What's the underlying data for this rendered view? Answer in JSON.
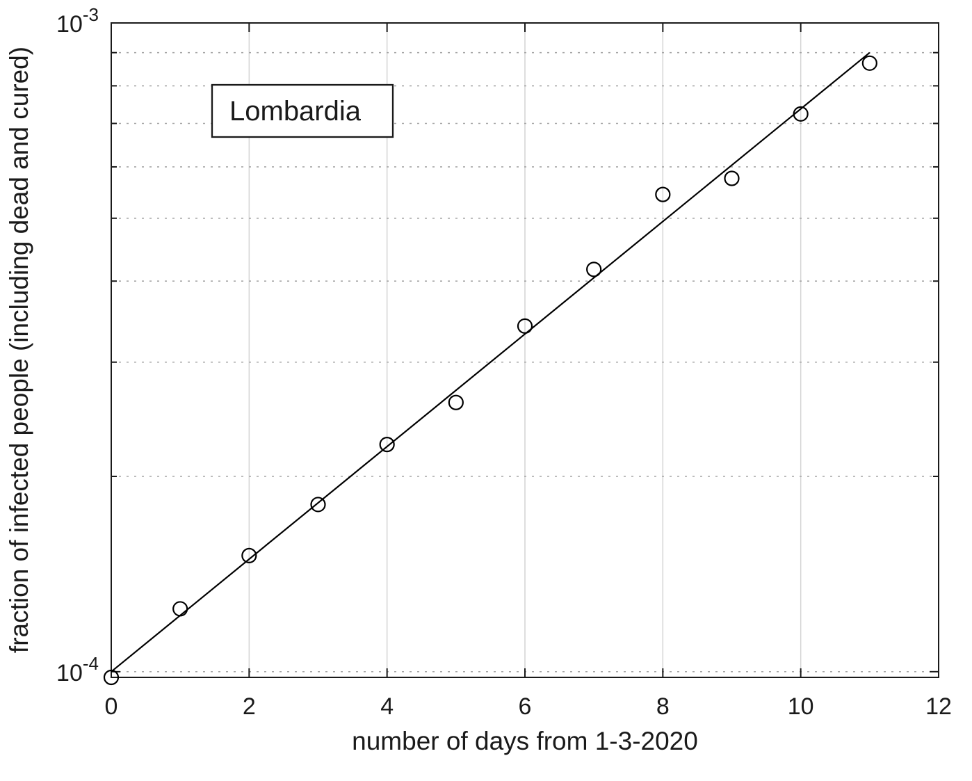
{
  "chart_data": {
    "type": "scatter",
    "legend": "Lombardia",
    "xlabel": "number of days from 1-3-2020",
    "ylabel": "fraction of infected people (including dead and cured)",
    "yscale": "log",
    "xlim": [
      0,
      12
    ],
    "ylim": [
      9.8e-05,
      0.001
    ],
    "x": [
      0,
      1,
      2,
      3,
      4,
      5,
      6,
      7,
      8,
      9,
      10,
      11
    ],
    "y": [
      9.8e-05,
      0.000125,
      0.000151,
      0.000181,
      0.000224,
      0.00026,
      0.000341,
      0.000417,
      0.000544,
      0.000576,
      0.000724,
      0.000867
    ],
    "fit_line": {
      "x": [
        0,
        11
      ],
      "y": [
        0.0001,
        0.0009
      ]
    },
    "x_ticks": [
      0,
      2,
      4,
      6,
      8,
      10,
      12
    ],
    "y_major_ticks": [
      {
        "value": 0.001,
        "base": "10",
        "exp": "-3"
      },
      {
        "value": 0.0001,
        "base": "10",
        "exp": "-4"
      }
    ],
    "y_minor_ticks": [
      0.0002,
      0.0003,
      0.0004,
      0.0005,
      0.0006,
      0.0007,
      0.0008,
      0.0009
    ],
    "grid": {
      "x_values": [
        2,
        4,
        6,
        8,
        10
      ],
      "y_values": [
        0.0001,
        0.0002,
        0.0003,
        0.0004,
        0.0005,
        0.0006,
        0.0007,
        0.0008,
        0.0009
      ],
      "x_style": "solid",
      "y_style": "dotted"
    },
    "legend_position": "top-left-inside",
    "colors": {
      "background": "#ffffff",
      "axis": "#1a1a1a",
      "text": "#1a1a1a",
      "marker": "#000000",
      "fit_line": "#000000",
      "grid_vertical": "#d4d4d4",
      "grid_horizontal": "#a6a6a6"
    },
    "marker": {
      "shape": "circle",
      "radius": 10,
      "stroke_width": 2.2,
      "fill": "none"
    }
  }
}
